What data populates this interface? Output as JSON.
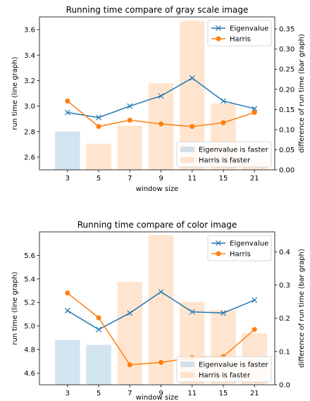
{
  "chart_data": [
    {
      "type": "bar",
      "title": "Running time compare of gray scale image",
      "xlabel": "window size",
      "ylabel": "run time (line graph)",
      "y2label": "difference of run time (bar graph)",
      "categories": [
        "3",
        "5",
        "7",
        "9",
        "11",
        "15",
        "21"
      ],
      "ylim": [
        2.5,
        3.7
      ],
      "yticks": [
        2.6,
        2.8,
        3.0,
        3.2,
        3.4,
        3.6
      ],
      "y2lim": [
        0,
        0.38
      ],
      "y2ticks": [
        0.0,
        0.05,
        0.1,
        0.15,
        0.2,
        0.25,
        0.3,
        0.35
      ],
      "line_series": [
        {
          "name": "Eigenvalue",
          "values": [
            2.95,
            2.91,
            3.0,
            3.08,
            3.22,
            3.04,
            2.98
          ],
          "color": "#1f77b4",
          "marker": "x"
        },
        {
          "name": "Harris",
          "values": [
            3.04,
            2.84,
            2.89,
            2.86,
            2.84,
            2.87,
            2.95
          ],
          "color": "#ff7f0e",
          "marker": "o"
        }
      ],
      "bar_series": [
        {
          "name": "Eigenvalue is faster",
          "color": "#1f77b4",
          "values": [
            0.095,
            null,
            null,
            null,
            null,
            null,
            null
          ]
        },
        {
          "name": "Harris is faster",
          "color": "#ff7f0e",
          "values": [
            null,
            0.065,
            0.11,
            0.215,
            0.37,
            0.165,
            0.03
          ]
        }
      ],
      "line_legend_position": "upper right",
      "bar_legend_position": "lower right",
      "grid": false
    },
    {
      "type": "bar",
      "title": "Running time compare of color image",
      "xlabel": "window size",
      "ylabel": "run time (line graph)",
      "y2label": "difference of run time (bar graph)",
      "categories": [
        "3",
        "5",
        "7",
        "9",
        "11",
        "15",
        "21"
      ],
      "ylim": [
        4.5,
        5.8
      ],
      "yticks": [
        4.6,
        4.8,
        5.0,
        5.2,
        5.4,
        5.6
      ],
      "y2lim": [
        0,
        0.46
      ],
      "y2ticks": [
        0.0,
        0.1,
        0.2,
        0.3,
        0.4
      ],
      "line_series": [
        {
          "name": "Eigenvalue",
          "values": [
            5.13,
            4.97,
            5.11,
            5.29,
            5.12,
            5.11,
            5.22
          ],
          "color": "#1f77b4",
          "marker": "x"
        },
        {
          "name": "Harris",
          "values": [
            5.28,
            5.07,
            4.67,
            4.69,
            4.73,
            4.74,
            4.97
          ],
          "color": "#ff7f0e",
          "marker": "o"
        }
      ],
      "bar_series": [
        {
          "name": "Eigenvalue is faster",
          "color": "#1f77b4",
          "values": [
            0.135,
            0.12,
            null,
            null,
            null,
            null,
            null
          ]
        },
        {
          "name": "Harris is faster",
          "color": "#ff7f0e",
          "values": [
            null,
            null,
            0.31,
            0.45,
            0.25,
            0.225,
            0.155
          ]
        }
      ],
      "line_legend_position": "upper right",
      "bar_legend_position": "lower right",
      "grid": false
    }
  ]
}
